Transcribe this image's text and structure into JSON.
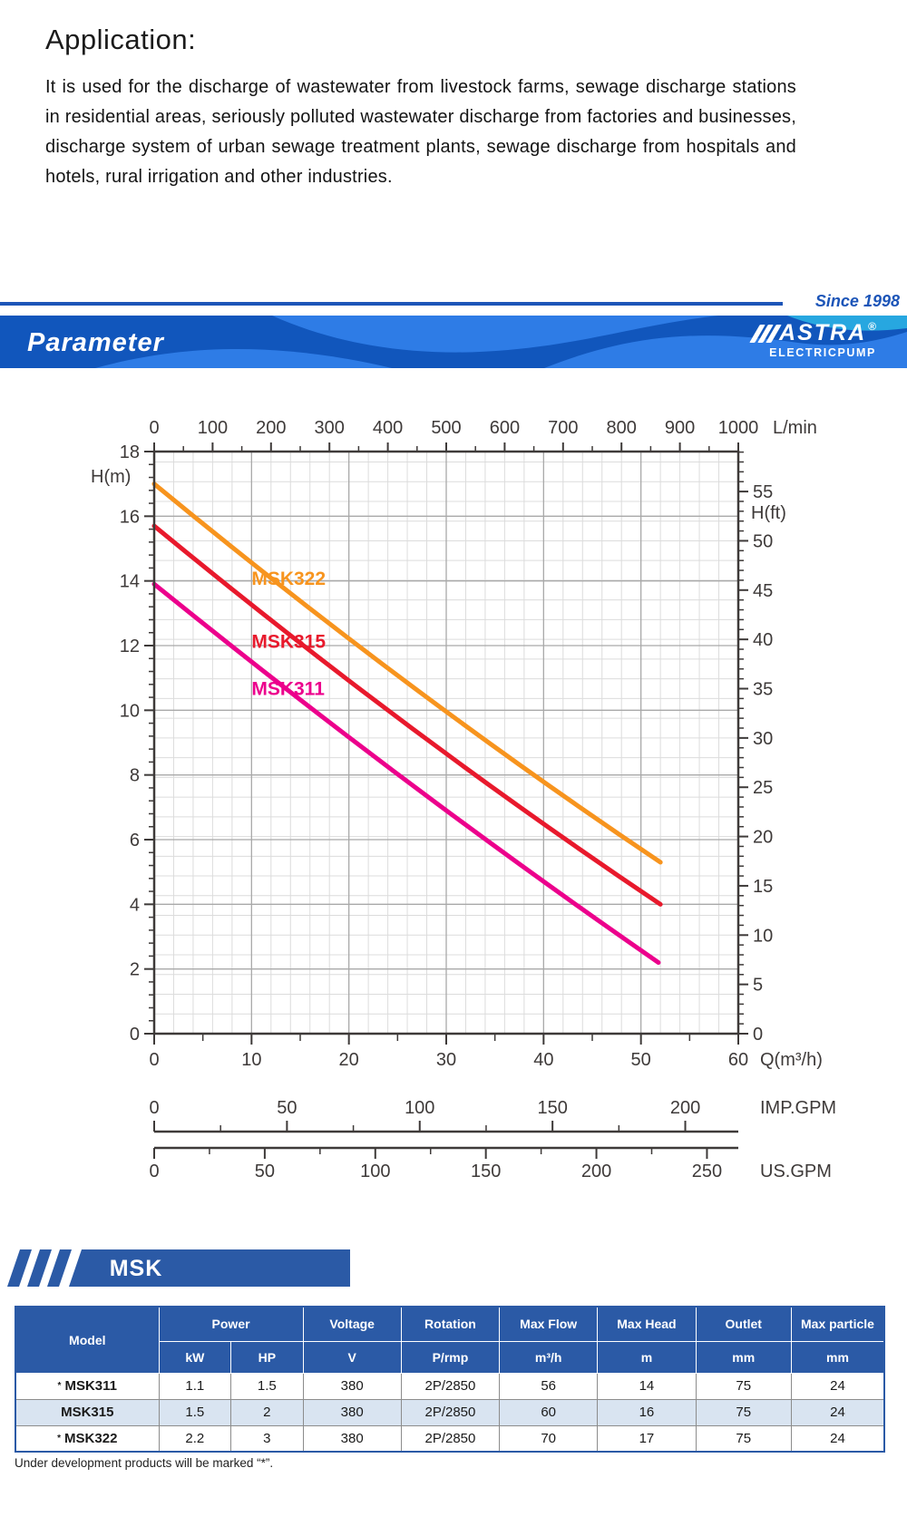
{
  "application": {
    "title": "Application:",
    "body": "It is used for the discharge of wastewater from livestock farms, sewage discharge stations in residential areas, seriously polluted wastewater discharge from factories and businesses, discharge system of urban sewage treatment plants, sewage discharge from hospitals and hotels, rural irrigation and other industries."
  },
  "header": {
    "since": "Since 1998",
    "section_title": "Parameter",
    "accent_color": "#1c55b8",
    "banner_base_color": "#1156bc",
    "banner_wave_color": "#2e7ce6",
    "banner_wave_accent": "#27a7e0",
    "logo": {
      "brand": "ASTRA",
      "registered": "®",
      "subtitle": "ELECTRICPUMP"
    }
  },
  "chart_data": {
    "type": "line",
    "title": "",
    "x_axis_top": {
      "label": "L/min",
      "min": 0,
      "max": 1000,
      "tick_step": 100,
      "minor_step": 50
    },
    "x_axis_bottom": {
      "label": "Q(m³/h)",
      "min": 0,
      "max": 60,
      "tick_step": 10,
      "minor_step": 5
    },
    "x_axis_imp": {
      "label": "IMP.GPM",
      "unit_per_m3h": 3.6662,
      "tick_step": 50,
      "minor_step": 25,
      "last_label": 200
    },
    "x_axis_us": {
      "label": "US.GPM",
      "unit_per_m3h": 4.4029,
      "tick_step": 50,
      "minor_step": 25,
      "last_label": 250
    },
    "y_axis_left": {
      "label": "H(m)",
      "min": 0,
      "max": 18,
      "tick_step": 2,
      "minor_step": 0.4
    },
    "y_axis_right": {
      "label": "H(ft)",
      "min": 0,
      "max": 59,
      "tick_step": 5,
      "minor_step": 1,
      "last_label": 55
    },
    "grid": {
      "v_light_step_m3h": 2,
      "v_medium_step_m3h": 10,
      "h_light_step_ft": 2,
      "h_medium_step_m": 2
    },
    "legend_position": "on-curve-labels",
    "series": [
      {
        "name": "MSK322",
        "color": "#F7941E",
        "points_q_h": [
          [
            0,
            17.0
          ],
          [
            26,
            10.85
          ],
          [
            52,
            5.3
          ]
        ],
        "label_q_h": [
          10,
          14.35
        ]
      },
      {
        "name": "MSK315",
        "color": "#E8192C",
        "points_q_h": [
          [
            0,
            15.7
          ],
          [
            26,
            9.55
          ],
          [
            52,
            4.0
          ]
        ],
        "label_q_h": [
          10,
          12.4
        ]
      },
      {
        "name": "MSK311",
        "color": "#EC008C",
        "points_q_h": [
          [
            0,
            13.9
          ],
          [
            26,
            7.8
          ],
          [
            51.8,
            2.2
          ]
        ],
        "label_q_h": [
          10,
          10.95
        ]
      }
    ]
  },
  "series_banner": {
    "label": "MSK",
    "color": "#2b5aa6"
  },
  "table": {
    "columns": [
      {
        "top": "Model"
      },
      {
        "top": "Power",
        "sub": [
          "kW",
          "HP"
        ]
      },
      {
        "top": "Voltage",
        "sub": [
          "V"
        ]
      },
      {
        "top": "Rotation",
        "sub": [
          "P/rmp"
        ]
      },
      {
        "top": "Max Flow",
        "sub": [
          "m³/h"
        ]
      },
      {
        "top": "Max Head",
        "sub": [
          "m"
        ]
      },
      {
        "top": "Outlet",
        "sub": [
          "mm"
        ]
      },
      {
        "top": "Max particle",
        "sub": [
          "mm"
        ]
      }
    ],
    "rows": [
      {
        "starred": true,
        "model": "MSK311",
        "kw": "1.1",
        "hp": "1.5",
        "voltage": "380",
        "rotation": "2P/2850",
        "max_flow": "56",
        "max_head": "14",
        "outlet": "75",
        "max_particle": "24"
      },
      {
        "starred": false,
        "model": "MSK315",
        "kw": "1.5",
        "hp": "2",
        "voltage": "380",
        "rotation": "2P/2850",
        "max_flow": "60",
        "max_head": "16",
        "outlet": "75",
        "max_particle": "24"
      },
      {
        "starred": true,
        "model": "MSK322",
        "kw": "2.2",
        "hp": "3",
        "voltage": "380",
        "rotation": "2P/2850",
        "max_flow": "70",
        "max_head": "17",
        "outlet": "75",
        "max_particle": "24"
      }
    ],
    "star_symbol": "*"
  },
  "footnote": "Under development products will be marked “*”."
}
